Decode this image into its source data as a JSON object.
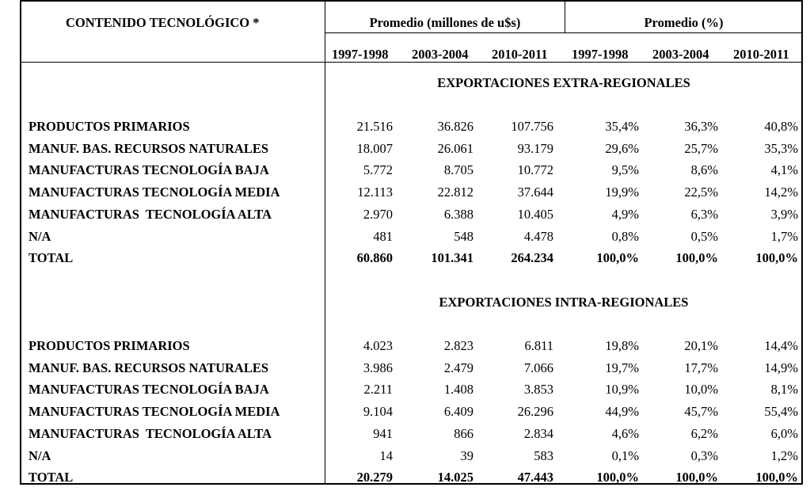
{
  "header": {
    "col_label": "CONTENIDO TECNOLÓGICO *",
    "group_millions": "Promedio (millones de u$s)",
    "group_percent": "Promedio (%)",
    "years": [
      "1997-1998",
      "2003-2004",
      "2010-2011",
      "1997-1998",
      "2003-2004",
      "2010-2011"
    ]
  },
  "sections": [
    {
      "title": "EXPORTACIONES EXTRA-REGIONALES",
      "rows": [
        {
          "label": "PRODUCTOS PRIMARIOS",
          "values": [
            "21.516",
            "36.826",
            "107.756",
            "35,4%",
            "36,3%",
            "40,8%"
          ]
        },
        {
          "label": "MANUF. BAS. RECURSOS NATURALES",
          "values": [
            "18.007",
            "26.061",
            "93.179",
            "29,6%",
            "25,7%",
            "35,3%"
          ]
        },
        {
          "label": "MANUFACTURAS TECNOLOGÍA BAJA",
          "values": [
            "5.772",
            "8.705",
            "10.772",
            "9,5%",
            "8,6%",
            "4,1%"
          ]
        },
        {
          "label": "MANUFACTURAS TECNOLOGÍA MEDIA",
          "values": [
            "12.113",
            "22.812",
            "37.644",
            "19,9%",
            "22,5%",
            "14,2%"
          ]
        },
        {
          "label": "MANUFACTURAS  TECNOLOGÍA ALTA",
          "values": [
            "2.970",
            "6.388",
            "10.405",
            "4,9%",
            "6,3%",
            "3,9%"
          ]
        },
        {
          "label": "N/A",
          "values": [
            "481",
            "548",
            "4.478",
            "0,8%",
            "0,5%",
            "1,7%"
          ]
        },
        {
          "label": "TOTAL",
          "values": [
            "60.860",
            "101.341",
            "264.234",
            "100,0%",
            "100,0%",
            "100,0%"
          ],
          "bold": true
        }
      ]
    },
    {
      "title": "EXPORTACIONES INTRA-REGIONALES",
      "rows": [
        {
          "label": "PRODUCTOS PRIMARIOS",
          "values": [
            "4.023",
            "2.823",
            "6.811",
            "19,8%",
            "20,1%",
            "14,4%"
          ]
        },
        {
          "label": "MANUF. BAS. RECURSOS NATURALES",
          "values": [
            "3.986",
            "2.479",
            "7.066",
            "19,7%",
            "17,7%",
            "14,9%"
          ]
        },
        {
          "label": "MANUFACTURAS TECNOLOGÍA BAJA",
          "values": [
            "2.211",
            "1.408",
            "3.853",
            "10,9%",
            "10,0%",
            "8,1%"
          ]
        },
        {
          "label": "MANUFACTURAS TECNOLOGÍA MEDIA",
          "values": [
            "9.104",
            "6.409",
            "26.296",
            "44,9%",
            "45,7%",
            "55,4%"
          ]
        },
        {
          "label": "MANUFACTURAS  TECNOLOGÍA ALTA",
          "values": [
            "941",
            "866",
            "2.834",
            "4,6%",
            "6,2%",
            "6,0%"
          ]
        },
        {
          "label": "N/A",
          "values": [
            "14",
            "39",
            "583",
            "0,1%",
            "0,3%",
            "1,2%"
          ]
        },
        {
          "label": "TOTAL",
          "values": [
            "20.279",
            "14.025",
            "47.443",
            "100,0%",
            "100,0%",
            "100,0%"
          ],
          "bold": true
        }
      ]
    }
  ]
}
